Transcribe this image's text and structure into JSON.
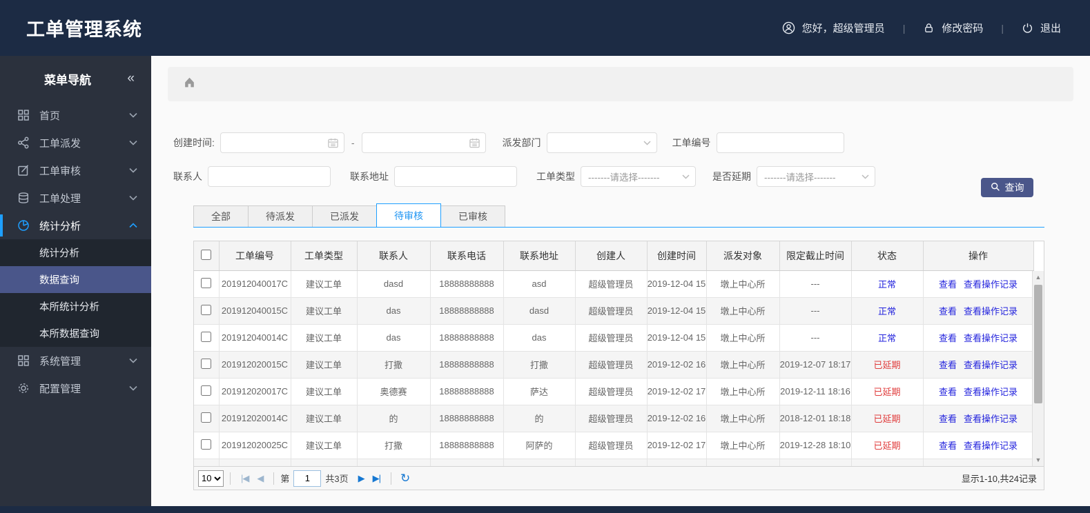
{
  "header": {
    "title": "工单管理系统",
    "greeting": "您好，超级管理员",
    "change_password": "修改密码",
    "logout": "退出"
  },
  "sidebar": {
    "title": "菜单导航",
    "collapse_icon": "«",
    "items": [
      {
        "label": "首页",
        "icon": "grid-icon",
        "active": false
      },
      {
        "label": "工单派发",
        "icon": "share-icon",
        "active": false
      },
      {
        "label": "工单审核",
        "icon": "edit-icon",
        "active": false
      },
      {
        "label": "工单处理",
        "icon": "stack-icon",
        "active": false
      },
      {
        "label": "统计分析",
        "icon": "pie-icon",
        "active": true,
        "expanded": true,
        "children": [
          {
            "label": "统计分析",
            "selected": false
          },
          {
            "label": "数据查询",
            "selected": true
          },
          {
            "label": "本所统计分析",
            "selected": false
          },
          {
            "label": "本所数据查询",
            "selected": false
          }
        ]
      },
      {
        "label": "系统管理",
        "icon": "grid-icon",
        "active": false
      },
      {
        "label": "配置管理",
        "icon": "gear-icon",
        "active": false
      }
    ]
  },
  "filters": {
    "created_label": "创建时间:",
    "date_from_value": "",
    "range_separator": "-",
    "date_to_value": "",
    "department_label": "派发部门",
    "department_value": "",
    "order_no_label": "工单编号",
    "order_no_value": "",
    "contact_label": "联系人",
    "contact_value": "",
    "address_label": "联系地址",
    "address_value": "",
    "type_label": "工单类型",
    "type_value": "-------请选择-------",
    "delay_label": "是否延期",
    "delay_value": "-------请选择-------",
    "search_button": "查询"
  },
  "tabs": [
    {
      "label": "全部",
      "active": false
    },
    {
      "label": "待派发",
      "active": false
    },
    {
      "label": "已派发",
      "active": false
    },
    {
      "label": "待审核",
      "active": true
    },
    {
      "label": "已审核",
      "active": false
    }
  ],
  "table": {
    "columns": [
      "工单编号",
      "工单类型",
      "联系人",
      "联系电话",
      "联系地址",
      "创建人",
      "创建时间",
      "派发对象",
      "限定截止时间",
      "状态",
      "操作"
    ],
    "rows": [
      {
        "id": "201912040017C",
        "type": "建议工单",
        "contact": "dasd",
        "phone": "18888888888",
        "address": "asd",
        "creator": "超级管理员",
        "created": "2019-12-04 15",
        "target": "墩上中心所",
        "deadline": "---",
        "status": "正常",
        "status_type": "normal",
        "actions": [
          "查看",
          "查看操作记录"
        ]
      },
      {
        "id": "201912040015C",
        "type": "建议工单",
        "contact": "das",
        "phone": "18888888888",
        "address": "dasd",
        "creator": "超级管理员",
        "created": "2019-12-04 15",
        "target": "墩上中心所",
        "deadline": "---",
        "status": "正常",
        "status_type": "normal",
        "actions": [
          "查看",
          "查看操作记录"
        ]
      },
      {
        "id": "201912040014C",
        "type": "建议工单",
        "contact": "das",
        "phone": "18888888888",
        "address": "das",
        "creator": "超级管理员",
        "created": "2019-12-04 15",
        "target": "墩上中心所",
        "deadline": "---",
        "status": "正常",
        "status_type": "normal",
        "actions": [
          "查看",
          "查看操作记录"
        ]
      },
      {
        "id": "201912020015C",
        "type": "建议工单",
        "contact": "打撒",
        "phone": "18888888888",
        "address": "打撒",
        "creator": "超级管理员",
        "created": "2019-12-02 16",
        "target": "墩上中心所",
        "deadline": "2019-12-07 18:17",
        "status": "已延期",
        "status_type": "delayed",
        "actions": [
          "查看",
          "查看操作记录"
        ]
      },
      {
        "id": "201912020017C",
        "type": "建议工单",
        "contact": "奥德赛",
        "phone": "18888888888",
        "address": "萨达",
        "creator": "超级管理员",
        "created": "2019-12-02 17",
        "target": "墩上中心所",
        "deadline": "2019-12-11 18:16",
        "status": "已延期",
        "status_type": "delayed",
        "actions": [
          "查看",
          "查看操作记录"
        ]
      },
      {
        "id": "201912020014C",
        "type": "建议工单",
        "contact": "的",
        "phone": "18888888888",
        "address": "的",
        "creator": "超级管理员",
        "created": "2019-12-02 16",
        "target": "墩上中心所",
        "deadline": "2018-12-01 18:18",
        "status": "已延期",
        "status_type": "delayed",
        "actions": [
          "查看",
          "查看操作记录"
        ]
      },
      {
        "id": "201912020025C",
        "type": "建议工单",
        "contact": "打撒",
        "phone": "18888888888",
        "address": "阿萨的",
        "creator": "超级管理员",
        "created": "2019-12-02 17",
        "target": "墩上中心所",
        "deadline": "2019-12-28 18:10",
        "status": "已延期",
        "status_type": "delayed",
        "actions": [
          "查看",
          "查看操作记录"
        ]
      },
      {
        "id": "",
        "type": "",
        "contact": "",
        "phone": "",
        "address": "",
        "creator": "",
        "created": "",
        "target": "",
        "deadline": "",
        "status": "",
        "status_type": "",
        "actions": []
      }
    ]
  },
  "pagination": {
    "page_size": "10",
    "page_prefix": "第",
    "current_page": "1",
    "total_pages": "共3页",
    "summary": "显示1-10,共24记录"
  },
  "colors": {
    "header_bg": "#1c2b44",
    "accent_blue": "#1e9fff",
    "link_blue": "#2323dd",
    "danger_red": "#e03b3b",
    "button_bg": "#4a568a",
    "selected_menu_bg": "#4a568a"
  }
}
